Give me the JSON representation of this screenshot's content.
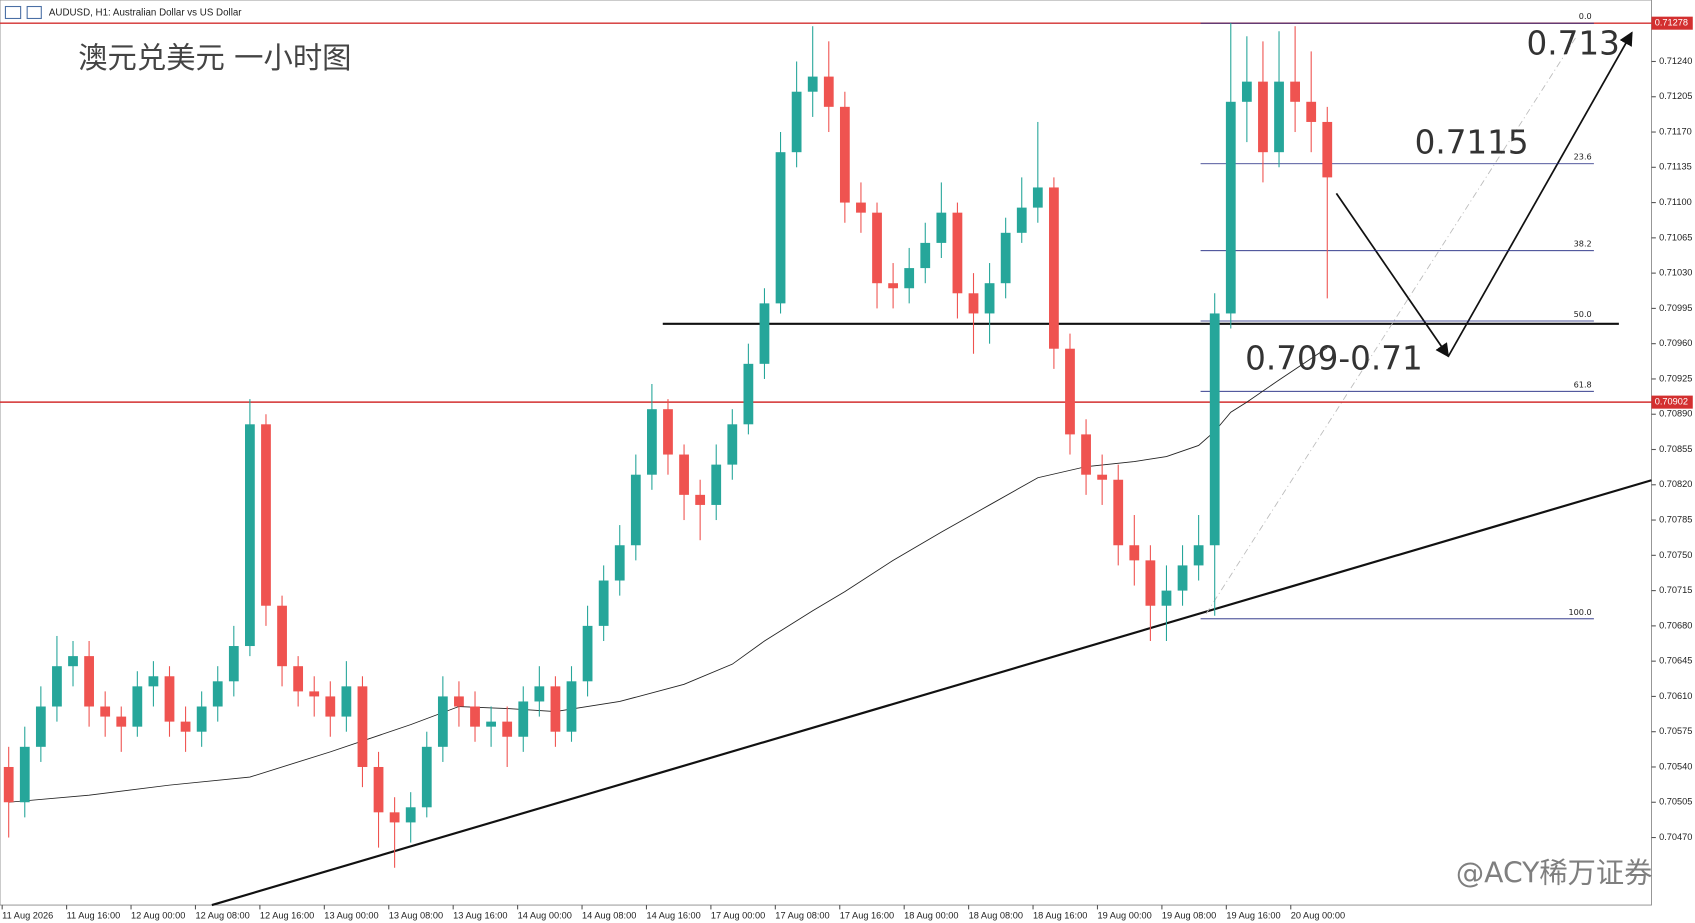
{
  "header": "AUDUSD, H1:  Australian Dollar vs US Dollar",
  "chart_data": {
    "type": "candlestick",
    "title": "澳元兑美元 一小时图",
    "annotations": [
      "0.713",
      "0.7115",
      "0.709-0.71"
    ],
    "watermark": "@ACY稀万证券",
    "up_color": "#26a69a",
    "down_color": "#ef5350",
    "ylim": [
      0.70403,
      0.71301
    ],
    "yticks": [
      {
        "value": 0.7047,
        "label": "0.70470"
      },
      0.70505,
      {
        "value": 0.7054,
        "label": "0.70540"
      },
      0.70575,
      {
        "value": 0.7061,
        "label": "0.70610"
      },
      0.70645,
      {
        "value": 0.7068,
        "label": "0.70680"
      },
      0.70715,
      {
        "value": 0.7075,
        "label": "0.70750"
      },
      0.70785,
      {
        "value": 0.7082,
        "label": "0.70820"
      },
      0.70855,
      {
        "value": 0.7089,
        "label": "0.70890"
      },
      0.70925,
      {
        "value": 0.7096,
        "label": "0.70960"
      },
      0.70995,
      {
        "value": 0.7103,
        "label": "0.71030"
      },
      0.71065,
      {
        "value": 0.711,
        "label": "0.71100"
      },
      0.71135,
      {
        "value": 0.7117,
        "label": "0.71170"
      },
      0.71205,
      {
        "value": 0.7124,
        "label": "0.71240"
      }
    ],
    "x_labels": [
      "11 Aug 2026",
      "11 Aug 16:00",
      "12 Aug 00:00",
      "12 Aug 08:00",
      "12 Aug 16:00",
      "13 Aug 00:00",
      "13 Aug 08:00",
      "13 Aug 16:00",
      "14 Aug 00:00",
      "14 Aug 08:00",
      "14 Aug 16:00",
      "17 Aug 00:00",
      "17 Aug 08:00",
      "17 Aug 16:00",
      "18 Aug 00:00",
      "18 Aug 08:00",
      "18 Aug 16:00",
      "19 Aug 00:00",
      "19 Aug 08:00",
      "19 Aug 16:00",
      "20 Aug 00:00"
    ],
    "open": [
      0.7054,
      0.70505,
      0.7056,
      0.706,
      0.7064,
      0.7065,
      0.706,
      0.7059,
      0.7058,
      0.7062,
      0.7063,
      0.70585,
      0.70575,
      0.706,
      0.70625,
      0.7066,
      0.7088,
      0.707,
      0.7064,
      0.70615,
      0.7061,
      0.7059,
      0.7062,
      0.7054,
      0.70495,
      0.70485,
      0.705,
      0.7056,
      0.7061,
      0.706,
      0.7058,
      0.70585,
      0.7057,
      0.70605,
      0.7062,
      0.70575,
      0.70625,
      0.7068,
      0.70725,
      0.7076,
      0.7083,
      0.70895,
      0.7085,
      0.7081,
      0.708,
      0.7084,
      0.7088,
      0.7094,
      0.71,
      0.7115,
      0.7121,
      0.71225,
      0.71195,
      0.711,
      0.7109,
      0.7102,
      0.71015,
      0.71035,
      0.7106,
      0.7109,
      0.7101,
      0.7099,
      0.7102,
      0.7107,
      0.71095,
      0.71115,
      0.70955,
      0.7087,
      0.7083,
      0.70825,
      0.7076,
      0.70745,
      0.707,
      0.70715,
      0.7074,
      0.7076,
      0.7099,
      0.712,
      0.7122,
      0.7115,
      0.7122,
      0.712,
      0.7118
    ],
    "high": [
      0.7056,
      0.7058,
      0.7062,
      0.7067,
      0.70665,
      0.70665,
      0.70615,
      0.706,
      0.70635,
      0.70645,
      0.7064,
      0.706,
      0.70615,
      0.7064,
      0.7068,
      0.70905,
      0.7089,
      0.7071,
      0.7065,
      0.7063,
      0.70625,
      0.70645,
      0.7063,
      0.70555,
      0.7051,
      0.70515,
      0.70575,
      0.7063,
      0.70625,
      0.70615,
      0.706,
      0.706,
      0.7062,
      0.7064,
      0.7063,
      0.7064,
      0.707,
      0.7074,
      0.7078,
      0.7085,
      0.7092,
      0.70905,
      0.7086,
      0.70825,
      0.7086,
      0.70895,
      0.7096,
      0.71015,
      0.7117,
      0.7124,
      0.71275,
      0.7126,
      0.7121,
      0.7112,
      0.711,
      0.7104,
      0.71055,
      0.7108,
      0.7112,
      0.711,
      0.7103,
      0.7104,
      0.71085,
      0.71125,
      0.7118,
      0.71125,
      0.7097,
      0.70885,
      0.7085,
      0.7084,
      0.7079,
      0.7076,
      0.7074,
      0.7076,
      0.7079,
      0.7101,
      0.71278,
      0.71265,
      0.7126,
      0.7127,
      0.71275,
      0.7125,
      0.71195
    ],
    "low": [
      0.7047,
      0.7049,
      0.70545,
      0.70585,
      0.7062,
      0.7058,
      0.7057,
      0.70555,
      0.7057,
      0.706,
      0.7057,
      0.70555,
      0.7056,
      0.70585,
      0.7061,
      0.7065,
      0.7068,
      0.7062,
      0.706,
      0.7059,
      0.7057,
      0.70575,
      0.7052,
      0.7046,
      0.7044,
      0.70465,
      0.7049,
      0.70545,
      0.7058,
      0.70565,
      0.7056,
      0.7054,
      0.70555,
      0.7059,
      0.7056,
      0.70565,
      0.7061,
      0.70665,
      0.7071,
      0.70745,
      0.70815,
      0.7083,
      0.70785,
      0.70765,
      0.70785,
      0.70825,
      0.7087,
      0.70925,
      0.7099,
      0.71135,
      0.71185,
      0.7117,
      0.7108,
      0.7107,
      0.70995,
      0.70995,
      0.71,
      0.7102,
      0.71045,
      0.70985,
      0.7095,
      0.7096,
      0.71005,
      0.7106,
      0.7108,
      0.70935,
      0.7085,
      0.7081,
      0.708,
      0.7074,
      0.7072,
      0.70665,
      0.70665,
      0.707,
      0.70725,
      0.7069,
      0.70975,
      0.7116,
      0.7112,
      0.71135,
      0.7117,
      0.7115,
      0.71005
    ],
    "close": [
      0.70505,
      0.7056,
      0.706,
      0.7064,
      0.7065,
      0.706,
      0.7059,
      0.7058,
      0.7062,
      0.7063,
      0.70585,
      0.70575,
      0.706,
      0.70625,
      0.7066,
      0.7088,
      0.707,
      0.7064,
      0.70615,
      0.7061,
      0.7059,
      0.7062,
      0.7054,
      0.70495,
      0.70485,
      0.705,
      0.7056,
      0.7061,
      0.706,
      0.7058,
      0.70585,
      0.7057,
      0.70605,
      0.7062,
      0.70575,
      0.70625,
      0.7068,
      0.70725,
      0.7076,
      0.7083,
      0.70895,
      0.7085,
      0.7081,
      0.708,
      0.7084,
      0.7088,
      0.7094,
      0.71,
      0.7115,
      0.7121,
      0.71225,
      0.71195,
      0.711,
      0.7109,
      0.7102,
      0.71015,
      0.71035,
      0.7106,
      0.7109,
      0.7101,
      0.7099,
      0.7102,
      0.7107,
      0.71095,
      0.71115,
      0.70955,
      0.7087,
      0.7083,
      0.70825,
      0.7076,
      0.70745,
      0.707,
      0.70715,
      0.7074,
      0.7076,
      0.7099,
      0.712,
      0.7122,
      0.7115,
      0.7122,
      0.712,
      0.7118,
      0.71125
    ],
    "ma": {
      "color": "#222222",
      "x": [
        0,
        5,
        10,
        15,
        20,
        25,
        28,
        31,
        34,
        38,
        42,
        45,
        47,
        50,
        52,
        55,
        58,
        61,
        64,
        67,
        70,
        72,
        74,
        75,
        76,
        77,
        79,
        82
      ],
      "values": [
        0.70505,
        0.70512,
        0.70522,
        0.7053,
        0.70555,
        0.70582,
        0.706,
        0.70598,
        0.70595,
        0.70605,
        0.70622,
        0.70642,
        0.70665,
        0.70695,
        0.70714,
        0.70745,
        0.70773,
        0.708,
        0.70827,
        0.70838,
        0.70843,
        0.70848,
        0.70859,
        0.70873,
        0.70892,
        0.70902,
        0.70924,
        0.70956
      ]
    },
    "hlines": [
      {
        "price": 0.71278,
        "color": "#d32f2f"
      },
      {
        "price": 0.70902,
        "color": "#d32f2f"
      }
    ],
    "fib": {
      "high": 0.71278,
      "low": 0.70687,
      "color": "#1a237e",
      "levels": [
        {
          "value": 0,
          "label": "0.0"
        },
        23.6,
        38.2,
        {
          "value": 50,
          "label": "50.0"
        },
        61.8,
        {
          "value": 100,
          "label": "100.0"
        }
      ]
    }
  }
}
